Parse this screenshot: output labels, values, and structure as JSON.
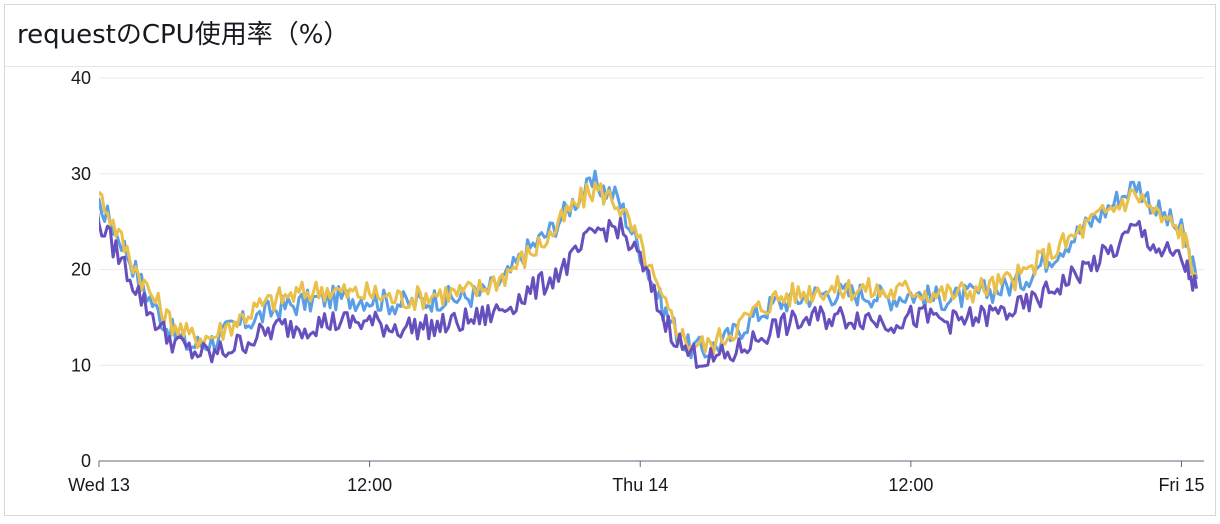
{
  "panel": {
    "title": "requestのCPU使用率（%）"
  },
  "chart_data": {
    "type": "line",
    "title": "requestのCPU使用率（%）",
    "xlabel": "",
    "ylabel": "",
    "ylim": [
      0,
      40
    ],
    "yticks": [
      0,
      10,
      20,
      30,
      40
    ],
    "xlim": [
      "2021-01-13T00:00",
      "2021-01-15T01:00"
    ],
    "xticks": [
      {
        "t": "2021-01-13T00:00",
        "label": "Wed 13"
      },
      {
        "t": "2021-01-13T12:00",
        "label": "12:00"
      },
      {
        "t": "2021-01-14T00:00",
        "label": "Thu 14"
      },
      {
        "t": "2021-01-14T12:00",
        "label": "12:00"
      },
      {
        "t": "2021-01-15T00:00",
        "label": "Fri 15"
      }
    ],
    "grid": true,
    "series": [
      {
        "color": "#5a9ee6",
        "x": [
          "2021-01-12T23:20",
          "2021-01-13T00:00",
          "2021-01-13T01:00",
          "2021-01-13T02:00",
          "2021-01-13T03:00",
          "2021-01-13T04:00",
          "2021-01-13T05:00",
          "2021-01-13T06:00",
          "2021-01-13T07:00",
          "2021-01-13T08:00",
          "2021-01-13T09:00",
          "2021-01-13T10:00",
          "2021-01-13T11:00",
          "2021-01-13T12:00",
          "2021-01-13T13:00",
          "2021-01-13T14:00",
          "2021-01-13T15:00",
          "2021-01-13T16:00",
          "2021-01-13T17:00",
          "2021-01-13T18:00",
          "2021-01-13T19:00",
          "2021-01-13T20:00",
          "2021-01-13T21:00",
          "2021-01-13T22:00",
          "2021-01-13T23:00",
          "2021-01-14T00:00",
          "2021-01-14T01:00",
          "2021-01-14T02:00",
          "2021-01-14T03:00",
          "2021-01-14T04:00",
          "2021-01-14T05:00",
          "2021-01-14T06:00",
          "2021-01-14T07:00",
          "2021-01-14T08:00",
          "2021-01-14T09:00",
          "2021-01-14T10:00",
          "2021-01-14T11:00",
          "2021-01-14T12:00",
          "2021-01-14T13:00",
          "2021-01-14T14:00",
          "2021-01-14T15:00",
          "2021-01-14T16:00",
          "2021-01-14T17:00",
          "2021-01-14T18:00",
          "2021-01-14T19:00",
          "2021-01-14T20:00",
          "2021-01-14T21:00",
          "2021-01-14T22:00",
          "2021-01-14T23:00",
          "2021-01-15T00:00",
          "2021-01-15T00:40"
        ],
        "values": [
          28,
          27,
          23,
          18,
          14,
          12,
          12.5,
          14,
          15,
          16,
          16.5,
          17,
          17,
          17,
          16.5,
          16.5,
          17,
          17,
          17.5,
          19,
          22,
          24,
          27,
          29,
          27.5,
          22,
          16,
          12,
          11.5,
          13,
          15,
          16.5,
          17,
          17.5,
          17.5,
          17.5,
          17,
          17.5,
          17,
          17,
          17.5,
          18,
          19,
          21,
          23,
          25,
          27,
          29,
          26,
          24,
          19
        ]
      },
      {
        "color": "#e9c04b",
        "x": [
          "2021-01-12T23:20",
          "2021-01-13T00:00",
          "2021-01-13T01:00",
          "2021-01-13T02:00",
          "2021-01-13T03:00",
          "2021-01-13T04:00",
          "2021-01-13T05:00",
          "2021-01-13T06:00",
          "2021-01-13T07:00",
          "2021-01-13T08:00",
          "2021-01-13T09:00",
          "2021-01-13T10:00",
          "2021-01-13T11:00",
          "2021-01-13T12:00",
          "2021-01-13T13:00",
          "2021-01-13T14:00",
          "2021-01-13T15:00",
          "2021-01-13T16:00",
          "2021-01-13T17:00",
          "2021-01-13T18:00",
          "2021-01-13T19:00",
          "2021-01-13T20:00",
          "2021-01-13T21:00",
          "2021-01-13T22:00",
          "2021-01-13T23:00",
          "2021-01-14T00:00",
          "2021-01-14T01:00",
          "2021-01-14T02:00",
          "2021-01-14T03:00",
          "2021-01-14T04:00",
          "2021-01-14T05:00",
          "2021-01-14T06:00",
          "2021-01-14T07:00",
          "2021-01-14T08:00",
          "2021-01-14T09:00",
          "2021-01-14T10:00",
          "2021-01-14T11:00",
          "2021-01-14T12:00",
          "2021-01-14T13:00",
          "2021-01-14T14:00",
          "2021-01-14T15:00",
          "2021-01-14T16:00",
          "2021-01-14T17:00",
          "2021-01-14T18:00",
          "2021-01-14T19:00",
          "2021-01-14T20:00",
          "2021-01-14T21:00",
          "2021-01-14T22:00",
          "2021-01-14T23:00",
          "2021-01-15T00:00",
          "2021-01-15T00:40"
        ],
        "values": [
          28.5,
          28,
          23,
          18.5,
          15,
          13,
          13,
          14.5,
          16,
          17,
          17.5,
          18,
          17.5,
          17.5,
          17,
          17,
          17.5,
          17.5,
          18,
          19.5,
          21.5,
          23.5,
          26.5,
          28.5,
          27,
          22.5,
          16.5,
          12.5,
          12,
          13.5,
          15.5,
          17,
          17.5,
          18,
          18,
          18,
          17.5,
          18,
          17.5,
          17.5,
          18,
          18.5,
          19.5,
          21.5,
          23,
          25,
          26.5,
          28,
          25.5,
          24,
          19.5
        ]
      },
      {
        "color": "#6750bd",
        "x": [
          "2021-01-12T23:20",
          "2021-01-13T00:00",
          "2021-01-13T01:00",
          "2021-01-13T02:00",
          "2021-01-13T03:00",
          "2021-01-13T04:00",
          "2021-01-13T05:00",
          "2021-01-13T06:00",
          "2021-01-13T07:00",
          "2021-01-13T08:00",
          "2021-01-13T09:00",
          "2021-01-13T10:00",
          "2021-01-13T11:00",
          "2021-01-13T12:00",
          "2021-01-13T13:00",
          "2021-01-13T14:00",
          "2021-01-13T15:00",
          "2021-01-13T16:00",
          "2021-01-13T17:00",
          "2021-01-13T18:00",
          "2021-01-13T19:00",
          "2021-01-13T20:00",
          "2021-01-13T21:00",
          "2021-01-13T22:00",
          "2021-01-13T23:00",
          "2021-01-14T00:00",
          "2021-01-14T01:00",
          "2021-01-14T02:00",
          "2021-01-14T03:00",
          "2021-01-14T04:00",
          "2021-01-14T05:00",
          "2021-01-14T06:00",
          "2021-01-14T07:00",
          "2021-01-14T08:00",
          "2021-01-14T09:00",
          "2021-01-14T10:00",
          "2021-01-14T11:00",
          "2021-01-14T12:00",
          "2021-01-14T13:00",
          "2021-01-14T14:00",
          "2021-01-14T15:00",
          "2021-01-14T16:00",
          "2021-01-14T17:00",
          "2021-01-14T18:00",
          "2021-01-14T19:00",
          "2021-01-14T20:00",
          "2021-01-14T21:00",
          "2021-01-14T22:00",
          "2021-01-14T23:00",
          "2021-01-15T00:00",
          "2021-01-15T00:40"
        ],
        "values": [
          26,
          25,
          21,
          16.5,
          13,
          11.5,
          11,
          12,
          13,
          14,
          14,
          14.5,
          14.5,
          14.5,
          14,
          14,
          14,
          14.5,
          15,
          16,
          17.5,
          19,
          21,
          24,
          24.5,
          21,
          15,
          11.5,
          10.5,
          11,
          12.5,
          14,
          14.5,
          15,
          15,
          15,
          14.5,
          15,
          15,
          14.5,
          15,
          15.5,
          16,
          17.5,
          19,
          20.5,
          22,
          24.5,
          22,
          21,
          18
        ]
      }
    ]
  }
}
